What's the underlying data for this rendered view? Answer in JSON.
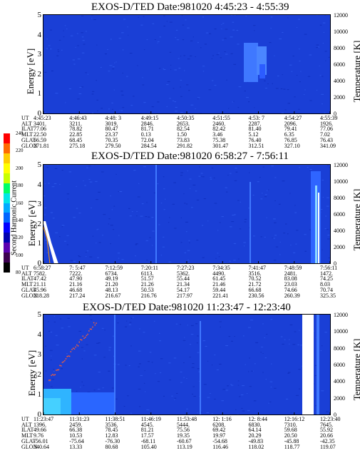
{
  "colorbar": {
    "label": "Second Harmonic Current",
    "ticks": [
      "240",
      "220",
      "200",
      "180",
      "160",
      "140",
      "120",
      "100",
      "80"
    ],
    "colors": [
      "#ff0000",
      "#ff6a00",
      "#ffcc00",
      "#ffff00",
      "#c8ff00",
      "#00ff66",
      "#00e6e6",
      "#00aaff",
      "#0066ff",
      "#0000ff",
      "#0000b0",
      "#5a00b0",
      "#3c0050",
      "#000000"
    ]
  },
  "chart_data": [
    {
      "type": "heatmap",
      "title": "EXOS-D/TED   Date:981020  4:45:23 - 4:55:39",
      "ylabel": "Energy [eV]",
      "ylabel_right": "Temperature [K]",
      "ylim": [
        0,
        5
      ],
      "yticks": [
        "0",
        "1",
        "2",
        "3",
        "4",
        "5"
      ],
      "ylim_right": [
        0,
        12000
      ],
      "yticks_right": [
        "0",
        "2000",
        "4000",
        "6000",
        "8000",
        "10000",
        "12000"
      ],
      "rows": {
        "UT": [
          "4:45:23",
          "4:46:43",
          "4:48: 3",
          "4:49:15",
          "4:50:35",
          "4:51:55",
          "4:53: 7",
          "4:54:27",
          "4:55:39"
        ],
        "ALT": [
          "3401.",
          "3211.",
          "3019.",
          "2846.",
          "2653.",
          "2460.",
          "2287.",
          "2096.",
          "1926."
        ],
        "ILAT": [
          "77.06",
          "78.82",
          "80.47",
          "81.71",
          "82.54",
          "82.42",
          "81.40",
          "79.41",
          "77.06"
        ],
        "MLT": [
          "22.50",
          "22.85",
          "23.37",
          "0.13",
          "1.50",
          "3.46",
          "5.12",
          "6.35",
          "7.02"
        ],
        "GLAT": [
          "66.59",
          "68.45",
          "70.35",
          "72.04",
          "73.83",
          "75.38",
          "76.40",
          "76.85",
          "76.43"
        ],
        "GLON": [
          "271.81",
          "275.18",
          "279.50",
          "284.54",
          "291.82",
          "301.47",
          "312.51",
          "327.10",
          "341.09"
        ]
      }
    },
    {
      "type": "heatmap",
      "title": "EXOS-D/TED   Date:981020  6:58:27 - 7:56:11",
      "ylabel": "Energy [eV]",
      "ylabel_right": "Temperature [K]",
      "ylim": [
        0,
        5
      ],
      "yticks": [
        "0",
        "1",
        "2",
        "3",
        "4",
        "5"
      ],
      "ylim_right": [
        0,
        12000
      ],
      "yticks_right": [
        "0",
        "2000",
        "4000",
        "6000",
        "8000",
        "10000",
        "12000"
      ],
      "rows": {
        "UT": [
          "6:58:27",
          "7: 5:47",
          "7:12:59",
          "7:20:11",
          "7:27:23",
          "7:34:35",
          "7:41:47",
          "7:48:59",
          "7:56:11"
        ],
        "ALT": [
          "7582.",
          "7222.",
          "6734.",
          "6113.",
          "5362.",
          "4490.",
          "3516.",
          "2481.",
          "1472."
        ],
        "ILAT": [
          "47.42",
          "47.90",
          "49.19",
          "51.57",
          "55.44",
          "61.45",
          "70.52",
          "83.08",
          "74.25"
        ],
        "MLT": [
          "21.11",
          "21.16",
          "21.20",
          "21.26",
          "21.34",
          "21.46",
          "21.72",
          "23.03",
          "8.03"
        ],
        "GLAT": [
          "45.96",
          "46.68",
          "48.13",
          "50.53",
          "54.17",
          "59.44",
          "66.68",
          "74.66",
          "70.74"
        ],
        "GLON": [
          "218.28",
          "217.24",
          "216.67",
          "216.76",
          "217.97",
          "221.41",
          "230.56",
          "260.39",
          "325.35"
        ]
      }
    },
    {
      "type": "heatmap",
      "title": "EXOS-D/TED   Date:981020  11:23:47 - 12:23:40",
      "ylabel": "Energy [eV]",
      "ylabel_right": "Temperature [K]",
      "ylim": [
        0,
        5
      ],
      "yticks": [
        "0",
        "1",
        "2",
        "3",
        "4",
        "5"
      ],
      "ylim_right": [
        0,
        12000
      ],
      "yticks_right": [
        "0",
        "2000",
        "4000",
        "6000",
        "8000",
        "10000",
        "12000"
      ],
      "rows": {
        "UT": [
          "11:23:47",
          "11:31:23",
          "11:38:51",
          "11:46:19",
          "11:53:48",
          "12: 1:16",
          "12: 8:44",
          "12:16:12",
          "12:23:40"
        ],
        "ALT": [
          "1396.",
          "2459.",
          "3536.",
          "4545.",
          "5444.",
          "6208.",
          "6830.",
          "7310.",
          "7645."
        ],
        "ILAT": [
          "49.66",
          "66.38",
          "78.45",
          "81.21",
          "75.56",
          "69.42",
          "64.14",
          "59.68",
          "55.92"
        ],
        "MLT": [
          "9.76",
          "10.53",
          "12.83",
          "17.57",
          "19.35",
          "19.97",
          "20.29",
          "20.50",
          "20.66"
        ],
        "GLAT": [
          "-56.01",
          "-75.64",
          "-76.30",
          "-68.11",
          "-60.67",
          "-54.68",
          "-49.83",
          "-45.88",
          "-42.35"
        ],
        "GLON": [
          "340.64",
          "13.33",
          "80.68",
          "105.40",
          "113.19",
          "116.46",
          "118.02",
          "118.77",
          "119.07"
        ]
      }
    }
  ]
}
